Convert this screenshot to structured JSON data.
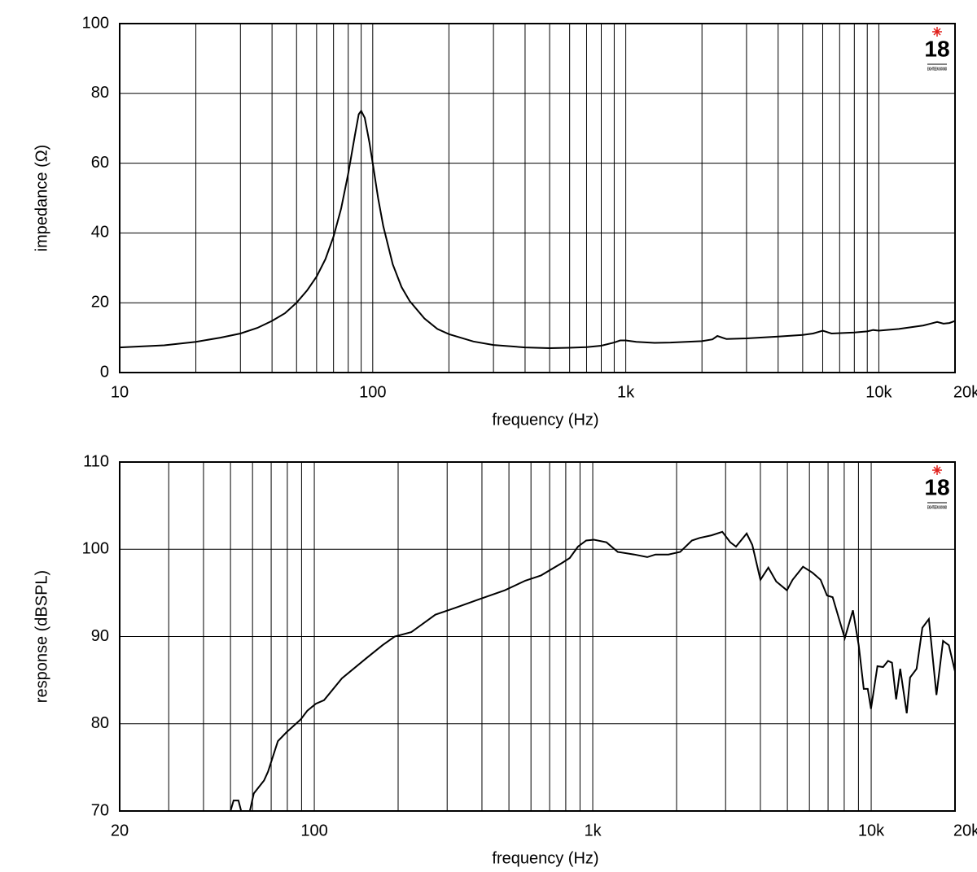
{
  "chart_data": [
    {
      "type": "line",
      "xscale": "log",
      "xlabel": "frequency (Hz)",
      "ylabel": "impedance (Ω)",
      "logo": "18",
      "logo_sub": "EIGHTEEN SOUND",
      "grid": true,
      "xlim": [
        10,
        20000
      ],
      "ylim": [
        0,
        100
      ],
      "xticks": [
        10,
        100,
        {
          "value": 1000,
          "label": "1k"
        },
        {
          "value": 10000,
          "label": "10k"
        },
        {
          "value": 20000,
          "label": "20k"
        }
      ],
      "xminor": [
        20,
        30,
        40,
        50,
        60,
        70,
        80,
        90,
        200,
        300,
        400,
        500,
        600,
        700,
        800,
        900,
        2000,
        3000,
        4000,
        5000,
        6000,
        7000,
        8000,
        9000
      ],
      "yticks": [
        0,
        20,
        40,
        60,
        80,
        100
      ],
      "x": [
        10,
        15,
        20,
        25,
        30,
        35,
        40,
        45,
        50,
        55,
        60,
        65,
        70,
        75,
        80,
        85,
        88,
        90,
        93,
        97,
        100,
        105,
        110,
        120,
        130,
        140,
        160,
        180,
        200,
        250,
        300,
        400,
        500,
        600,
        700,
        800,
        900,
        950,
        1000,
        1100,
        1300,
        1500,
        2000,
        2200,
        2300,
        2500,
        3000,
        4000,
        5000,
        5500,
        6000,
        6500,
        8000,
        9000,
        9500,
        10000,
        12000,
        15000,
        17000,
        18000,
        19000,
        20000
      ],
      "series": [
        {
          "name": "impedance",
          "color": "#000000",
          "values": [
            7.2,
            7.8,
            8.8,
            10,
            11.2,
            12.8,
            14.8,
            17,
            20,
            23.5,
            27.5,
            32.5,
            39,
            47,
            57,
            68,
            74,
            75,
            73,
            66,
            60,
            50,
            42,
            31,
            24.5,
            20.5,
            15.5,
            12.5,
            11,
            8.9,
            7.9,
            7.2,
            7.0,
            7.1,
            7.3,
            7.7,
            8.6,
            9.2,
            9.2,
            8.8,
            8.5,
            8.6,
            9.0,
            9.5,
            10.5,
            9.6,
            9.8,
            10.3,
            10.8,
            11.2,
            12,
            11.2,
            11.5,
            11.8,
            12.2,
            12,
            12.5,
            13.5,
            14.5,
            14,
            14.2,
            14.8
          ]
        }
      ]
    },
    {
      "type": "line",
      "xscale": "log",
      "xlabel": "frequency (Hz)",
      "ylabel": "response (dBSPL)",
      "logo": "18",
      "logo_sub": "EIGHTEEN SOUND",
      "grid": true,
      "xlim": [
        20,
        20000
      ],
      "ylim": [
        70,
        110
      ],
      "xticks": [
        20,
        100,
        {
          "value": 1000,
          "label": "1k"
        },
        {
          "value": 10000,
          "label": "10k"
        },
        {
          "value": 20000,
          "label": "20k"
        }
      ],
      "xminor": [
        30,
        40,
        50,
        60,
        70,
        80,
        90,
        200,
        300,
        400,
        500,
        600,
        700,
        800,
        900,
        2000,
        3000,
        4000,
        5000,
        6000,
        7000,
        8000,
        9000
      ],
      "yticks": [
        70,
        80,
        90,
        100,
        110
      ],
      "x": [
        50,
        51.3,
        53.4,
        54.6,
        58.7,
        60.6,
        66,
        68.2,
        74,
        79.3,
        89.4,
        94.4,
        101.3,
        108.4,
        125.6,
        153.6,
        175.7,
        194.4,
        223,
        272,
        322,
        393,
        483,
        572,
        652,
        773,
        827,
        885,
        947,
        1010,
        1120,
        1230,
        1410,
        1570,
        1680,
        1870,
        2060,
        2270,
        2420,
        2670,
        2920,
        3120,
        3270,
        3570,
        3740,
        4000,
        4270,
        4560,
        4980,
        5220,
        5690,
        6160,
        6580,
        6940,
        7270,
        7670,
        8040,
        8600,
        9020,
        9400,
        9720,
        9980,
        10530,
        11040,
        11490,
        11880,
        12290,
        12710,
        13420,
        13790,
        14560,
        15270,
        16110,
        17150,
        18120,
        19000,
        20000
      ],
      "series": [
        {
          "name": "response",
          "color": "#000000",
          "values": [
            70,
            71.2,
            71.2,
            70,
            70,
            72,
            73.5,
            74.5,
            78,
            79,
            80.5,
            81.5,
            82.3,
            82.7,
            85.2,
            87.5,
            89,
            90,
            90.5,
            92.5,
            93.3,
            94.3,
            95.3,
            96.4,
            97,
            98.4,
            99,
            100.3,
            101,
            101.1,
            100.8,
            99.7,
            99.4,
            99.1,
            99.4,
            99.4,
            99.7,
            101,
            101.3,
            101.6,
            102,
            100.8,
            100.3,
            101.8,
            100.5,
            96.5,
            97.9,
            96.3,
            95.3,
            96.5,
            98,
            97.3,
            96.5,
            94.7,
            94.5,
            92,
            89.8,
            93,
            89,
            84,
            84,
            81.7,
            86.6,
            86.5,
            87.2,
            87,
            82.8,
            86.3,
            81.2,
            85.3,
            86.3,
            91,
            92,
            83.3,
            89.5,
            89,
            86
          ]
        }
      ]
    }
  ]
}
